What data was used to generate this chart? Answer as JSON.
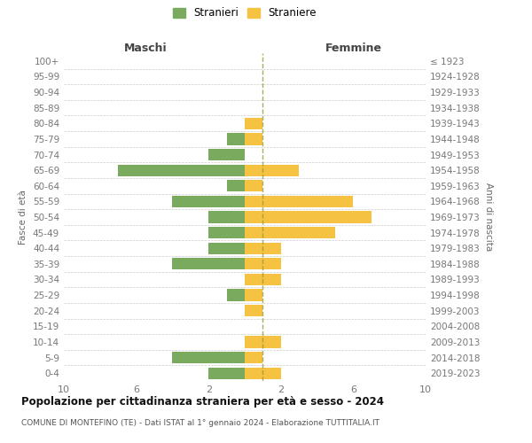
{
  "age_groups": [
    "100+",
    "95-99",
    "90-94",
    "85-89",
    "80-84",
    "75-79",
    "70-74",
    "65-69",
    "60-64",
    "55-59",
    "50-54",
    "45-49",
    "40-44",
    "35-39",
    "30-34",
    "25-29",
    "20-24",
    "15-19",
    "10-14",
    "5-9",
    "0-4"
  ],
  "birth_years": [
    "≤ 1923",
    "1924-1928",
    "1929-1933",
    "1934-1938",
    "1939-1943",
    "1944-1948",
    "1949-1953",
    "1954-1958",
    "1959-1963",
    "1964-1968",
    "1969-1973",
    "1974-1978",
    "1979-1983",
    "1984-1988",
    "1989-1993",
    "1994-1998",
    "1999-2003",
    "2004-2008",
    "2009-2013",
    "2014-2018",
    "2019-2023"
  ],
  "maschi": [
    0,
    0,
    0,
    0,
    0,
    1,
    2,
    7,
    1,
    4,
    2,
    2,
    2,
    4,
    0,
    1,
    0,
    0,
    0,
    4,
    2
  ],
  "femmine": [
    0,
    0,
    0,
    0,
    1,
    1,
    0,
    3,
    1,
    6,
    7,
    5,
    2,
    2,
    2,
    1,
    1,
    0,
    2,
    1,
    2
  ],
  "male_color": "#7aaa5e",
  "female_color": "#f5c242",
  "title": "Popolazione per cittadinanza straniera per età e sesso - 2024",
  "subtitle": "COMUNE DI MONTEFINO (TE) - Dati ISTAT al 1° gennaio 2024 - Elaborazione TUTTITALIA.IT",
  "xlabel_left": "Maschi",
  "xlabel_right": "Femmine",
  "ylabel_left": "Fasce di età",
  "ylabel_right": "Anni di nascita",
  "legend_male": "Stranieri",
  "legend_female": "Straniere",
  "xlim": 10,
  "xticks": [
    10,
    6,
    2,
    2,
    6,
    10
  ],
  "background_color": "#ffffff",
  "grid_color": "#cccccc",
  "dashed_line_color": "#999933"
}
